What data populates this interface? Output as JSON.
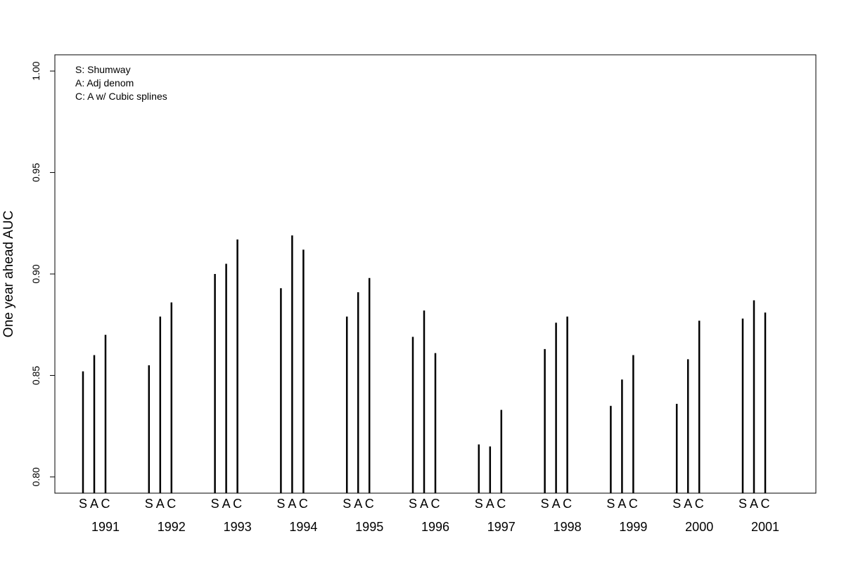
{
  "chart_data": {
    "type": "bar",
    "ylabel": "One year ahead AUC",
    "ylim": [
      0.792,
      1.008
    ],
    "yticks": [
      "0.80",
      "0.85",
      "0.90",
      "0.95",
      "1.00"
    ],
    "ytick_values": [
      0.8,
      0.85,
      0.9,
      0.95,
      1.0
    ],
    "grid": false,
    "legend_position": "top-left",
    "legend": [
      "S:  Shumway",
      "A:  Adj denom",
      "C:  A w/ Cubic splines"
    ],
    "bar_letters": [
      "S",
      "A",
      "C"
    ],
    "categories": [
      "1991",
      "1992",
      "1993",
      "1994",
      "1995",
      "1996",
      "1997",
      "1998",
      "1999",
      "2000",
      "2001"
    ],
    "series": [
      {
        "values": [
          0.852,
          0.855,
          0.9,
          0.893,
          0.879,
          0.869,
          0.816,
          0.863,
          0.835,
          0.836,
          0.878
        ]
      },
      {
        "values": [
          0.86,
          0.879,
          0.905,
          0.919,
          0.891,
          0.882,
          0.815,
          0.876,
          0.848,
          0.858,
          0.887
        ]
      },
      {
        "values": [
          0.87,
          0.886,
          0.917,
          0.912,
          0.898,
          0.861,
          0.833,
          0.879,
          0.86,
          0.877,
          0.881
        ]
      }
    ]
  }
}
